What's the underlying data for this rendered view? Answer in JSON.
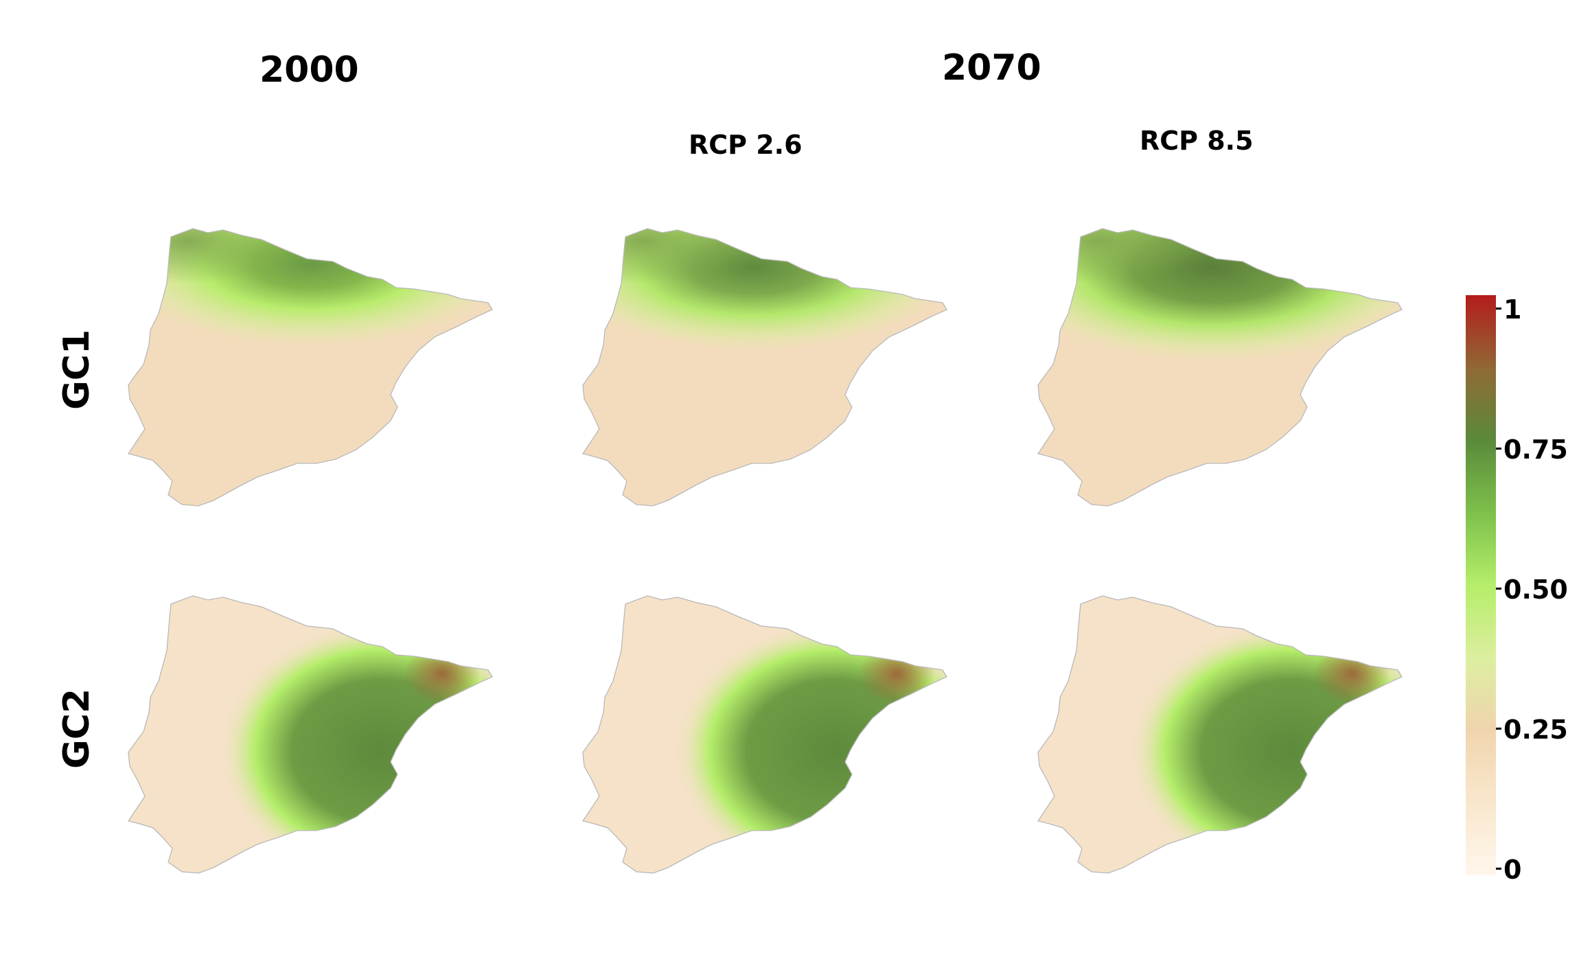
{
  "headers": {
    "year_baseline": "2000",
    "year_future": "2070",
    "scenario_1": "RCP 2.6",
    "scenario_2": "RCP 8.5"
  },
  "rows": {
    "row_1": "GC1",
    "row_2": "GC2"
  },
  "legend": {
    "scale_min": 0,
    "scale_max": 1,
    "ticks": [
      "1",
      "0.75",
      "0.50",
      "0.25",
      "0"
    ],
    "colors": [
      "#fff7ec",
      "#f0d4ae",
      "#b5ee6a",
      "#5a8a3a",
      "#b41c1c"
    ]
  },
  "panels": [
    {
      "row": "GC1",
      "column": "2000"
    },
    {
      "row": "GC1",
      "column": "RCP 2.6"
    },
    {
      "row": "GC1",
      "column": "RCP 8.5"
    },
    {
      "row": "GC2",
      "column": "2000"
    },
    {
      "row": "GC2",
      "column": "RCP 2.6"
    },
    {
      "row": "GC2",
      "column": "RCP 8.5"
    }
  ]
}
